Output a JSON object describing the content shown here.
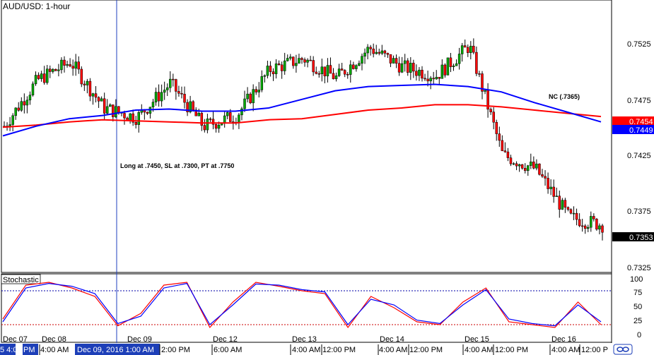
{
  "chart_data": [
    {
      "type": "candlestick",
      "title": "AUD/USD: 1-hour",
      "y_ticks": [
        "0.7525",
        "0.7475",
        "0.7425",
        "0.7375",
        "0.7325"
      ],
      "ylim": [
        0.731,
        0.756
      ],
      "price_labels": [
        {
          "value": "0.7454",
          "color": "#ff0000"
        },
        {
          "value": "0.7449",
          "color": "#0000ff"
        },
        {
          "value": "0.7353",
          "color": "#000000"
        }
      ],
      "annotations": [
        "Long at .7450, SL at .7300, PT at .7750",
        "NC (.7365)"
      ],
      "series": [
        {
          "name": "",
          "color": "#ff0000",
          "kind": "moving-average",
          "values": [
            0.7444,
            0.7446,
            0.7449,
            0.7451,
            0.745,
            0.7449,
            0.7448,
            0.7448,
            0.7451,
            0.7452,
            0.7456,
            0.746,
            0.7462,
            0.7465,
            0.7465,
            0.7463,
            0.746,
            0.7457,
            0.7454
          ]
        },
        {
          "name": "",
          "color": "#0000ff",
          "kind": "moving-average",
          "values": [
            0.7436,
            0.7445,
            0.7452,
            0.7455,
            0.746,
            0.7461,
            0.7459,
            0.7459,
            0.7462,
            0.747,
            0.7478,
            0.7482,
            0.7483,
            0.7484,
            0.7482,
            0.7477,
            0.7467,
            0.7458,
            0.7449
          ]
        },
        {
          "name": "",
          "color": "#000000",
          "kind": "ohlc-closes",
          "values": [
            0.7445,
            0.7488,
            0.7505,
            0.7462,
            0.7453,
            0.7485,
            0.7445,
            0.7455,
            0.7498,
            0.7508,
            0.749,
            0.7518,
            0.75,
            0.7492,
            0.752,
            0.7418,
            0.7405,
            0.736,
            0.7353
          ]
        }
      ]
    },
    {
      "type": "line",
      "title": "Stochastic",
      "y_ticks": [
        "100",
        "75",
        "50",
        "25",
        "0"
      ],
      "ylim": [
        0,
        100
      ],
      "levels": [
        80,
        20
      ],
      "series": [
        {
          "name": "",
          "color": "#ff0000",
          "values": [
            30,
            90,
            95,
            85,
            70,
            18,
            40,
            90,
            95,
            15,
            60,
            95,
            88,
            80,
            75,
            15,
            70,
            50,
            25,
            20,
            60,
            85,
            25,
            20,
            15,
            60,
            20
          ]
        },
        {
          "name": "",
          "color": "#0000ff",
          "values": [
            25,
            85,
            93,
            88,
            75,
            22,
            35,
            85,
            93,
            20,
            55,
            92,
            90,
            82,
            78,
            20,
            65,
            55,
            28,
            22,
            55,
            82,
            30,
            22,
            18,
            55,
            25
          ]
        }
      ]
    }
  ],
  "x_axis": {
    "labels": [
      "5 4:0",
      "PM",
      "4:00 AM",
      "Dec 09, 2016 1:00 AM",
      "2:00 PM",
      "6:00 AM",
      "4:00 AM",
      "12:00 PM",
      "4:00 AM",
      "12:00 PM",
      "4:00 AM",
      "12:00 PM",
      "4:00 AM",
      "12:00 P"
    ],
    "date_labels": [
      "Dec 07",
      "Dec 08",
      "Dec 09",
      "Dec 12",
      "Dec 13",
      "Dec 14",
      "Dec 15",
      "Dec 16"
    ]
  },
  "colors": {
    "up": "#00aa00",
    "down": "#ff0000",
    "grid": "#000000",
    "ma_red": "#ff0000",
    "ma_blue": "#0000ff"
  },
  "icons": {
    "corner": "infinity-icon"
  }
}
